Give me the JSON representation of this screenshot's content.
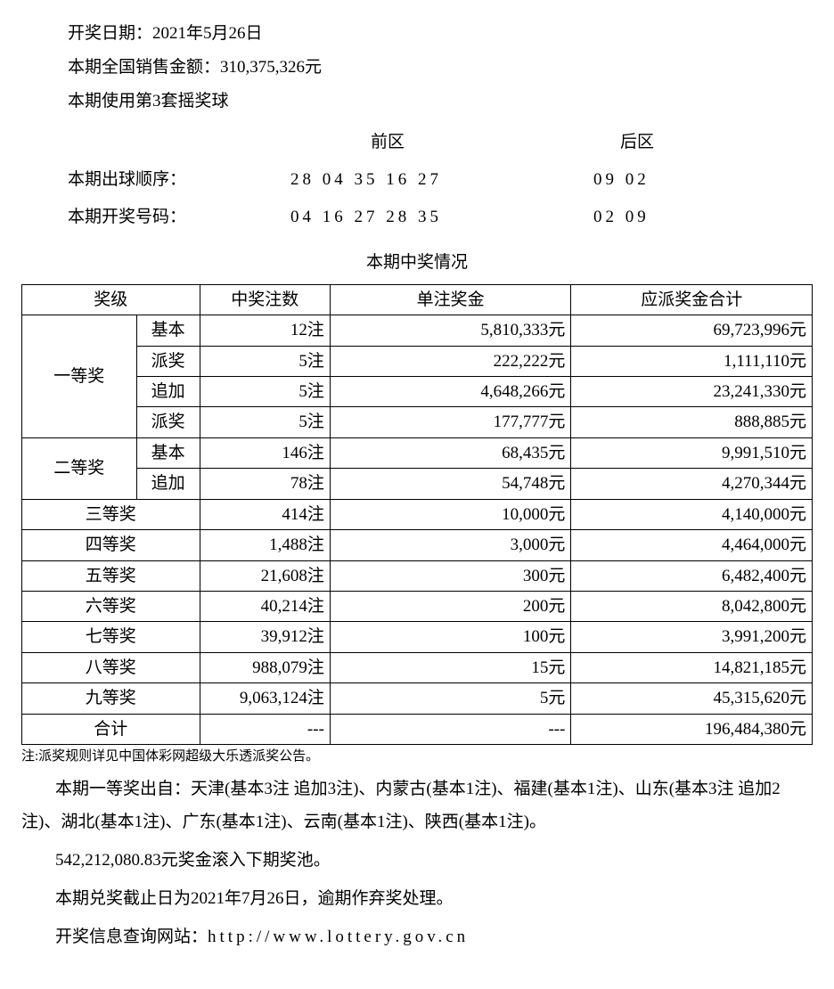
{
  "colors": {
    "text": "#000000",
    "background": "#ffffff",
    "border": "#000000"
  },
  "header": {
    "date_line": "开奖日期：2021年5月26日",
    "sales_line": "本期全国销售金额：310,375,326元",
    "ball_set_line": "本期使用第3套摇奖球"
  },
  "zones": {
    "front_label": "前区",
    "back_label": "后区"
  },
  "draw": {
    "order_label": "本期出球顺序：",
    "order_front": "28 04 35 16 27",
    "order_back": "09 02",
    "result_label": "本期开奖号码：",
    "result_front": "04 16 27 28 35",
    "result_back": "02 09"
  },
  "table": {
    "title": "本期中奖情况",
    "headers": {
      "level": "奖级",
      "count": "中奖注数",
      "unit": "单注奖金",
      "total": "应派奖金合计"
    },
    "first": {
      "level": "一等奖",
      "rows": [
        {
          "sub": "基本",
          "count": "12注",
          "unit": "5,810,333元",
          "total": "69,723,996元"
        },
        {
          "sub": "派奖",
          "count": "5注",
          "unit": "222,222元",
          "total": "1,111,110元"
        },
        {
          "sub": "追加",
          "count": "5注",
          "unit": "4,648,266元",
          "total": "23,241,330元"
        },
        {
          "sub": "派奖",
          "count": "5注",
          "unit": "177,777元",
          "total": "888,885元"
        }
      ]
    },
    "second": {
      "level": "二等奖",
      "rows": [
        {
          "sub": "基本",
          "count": "146注",
          "unit": "68,435元",
          "total": "9,991,510元"
        },
        {
          "sub": "追加",
          "count": "78注",
          "unit": "54,748元",
          "total": "4,270,344元"
        }
      ]
    },
    "simple": [
      {
        "level": "三等奖",
        "count": "414注",
        "unit": "10,000元",
        "total": "4,140,000元"
      },
      {
        "level": "四等奖",
        "count": "1,488注",
        "unit": "3,000元",
        "total": "4,464,000元"
      },
      {
        "level": "五等奖",
        "count": "21,608注",
        "unit": "300元",
        "total": "6,482,400元"
      },
      {
        "level": "六等奖",
        "count": "40,214注",
        "unit": "200元",
        "total": "8,042,800元"
      },
      {
        "level": "七等奖",
        "count": "39,912注",
        "unit": "100元",
        "total": "3,991,200元"
      },
      {
        "level": "八等奖",
        "count": "988,079注",
        "unit": "15元",
        "total": "14,821,185元"
      },
      {
        "level": "九等奖",
        "count": "9,063,124注",
        "unit": "5元",
        "total": "45,315,620元"
      }
    ],
    "total_row": {
      "level": "合计",
      "count": "---",
      "unit": "---",
      "total": "196,484,380元"
    }
  },
  "footnote": "注:派奖规则详见中国体彩网超级大乐透派奖公告。",
  "paragraphs": {
    "winners": "本期一等奖出自：天津(基本3注 追加3注)、内蒙古(基本1注)、福建(基本1注)、山东(基本3注 追加2注)、湖北(基本1注)、广东(基本1注)、云南(基本1注)、陕西(基本1注)。",
    "rollover": "542,212,080.83元奖金滚入下期奖池。",
    "deadline": "本期兑奖截止日为2021年7月26日，逾期作弃奖处理。",
    "website_prefix": "开奖信息查询网站：",
    "website_url": "http://www.lottery.gov.cn"
  }
}
